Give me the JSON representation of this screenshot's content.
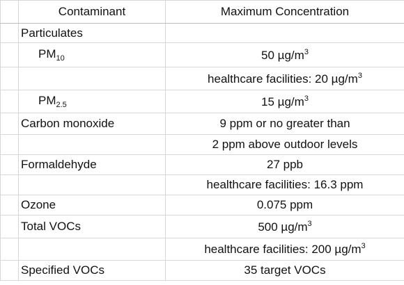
{
  "table": {
    "header": [
      "Contaminant",
      "Maximum Concentration"
    ],
    "rows": [
      {
        "contaminant": {
          "text": "Particulates"
        }
      },
      {
        "contaminant": {
          "text": "PM",
          "sub": "10"
        },
        "concentration": {
          "text": "50 µg/m",
          "sup": "3"
        }
      },
      {
        "concentration": {
          "text": "healthcare facilities: 20 µg/m",
          "sup": "3"
        }
      },
      {
        "contaminant": {
          "text": "PM",
          "sub": "2.5"
        },
        "concentration": {
          "text": "15 µg/m",
          "sup": "3"
        }
      },
      {
        "contaminant": {
          "text": "Carbon monoxide"
        },
        "concentration": {
          "text": "9 ppm or no greater than"
        }
      },
      {
        "concentration": {
          "text": "2 ppm above outdoor levels"
        }
      },
      {
        "contaminant": {
          "text": "Formaldehyde"
        },
        "concentration": {
          "text": "27 ppb"
        }
      },
      {
        "concentration": {
          "text": "healthcare facilities: 16.3 ppm"
        }
      },
      {
        "contaminant": {
          "text": "Ozone"
        },
        "concentration": {
          "text": "0.075 ppm"
        }
      },
      {
        "contaminant": {
          "text": "Total VOCs"
        },
        "concentration": {
          "text": "500 µg/m",
          "sup": "3"
        }
      },
      {
        "concentration": {
          "text": "healthcare facilities: 200 µg/m",
          "sup": "3"
        }
      },
      {
        "contaminant": {
          "text": "Specified VOCs"
        },
        "concentration": {
          "text": "35 target VOCs"
        }
      }
    ]
  }
}
